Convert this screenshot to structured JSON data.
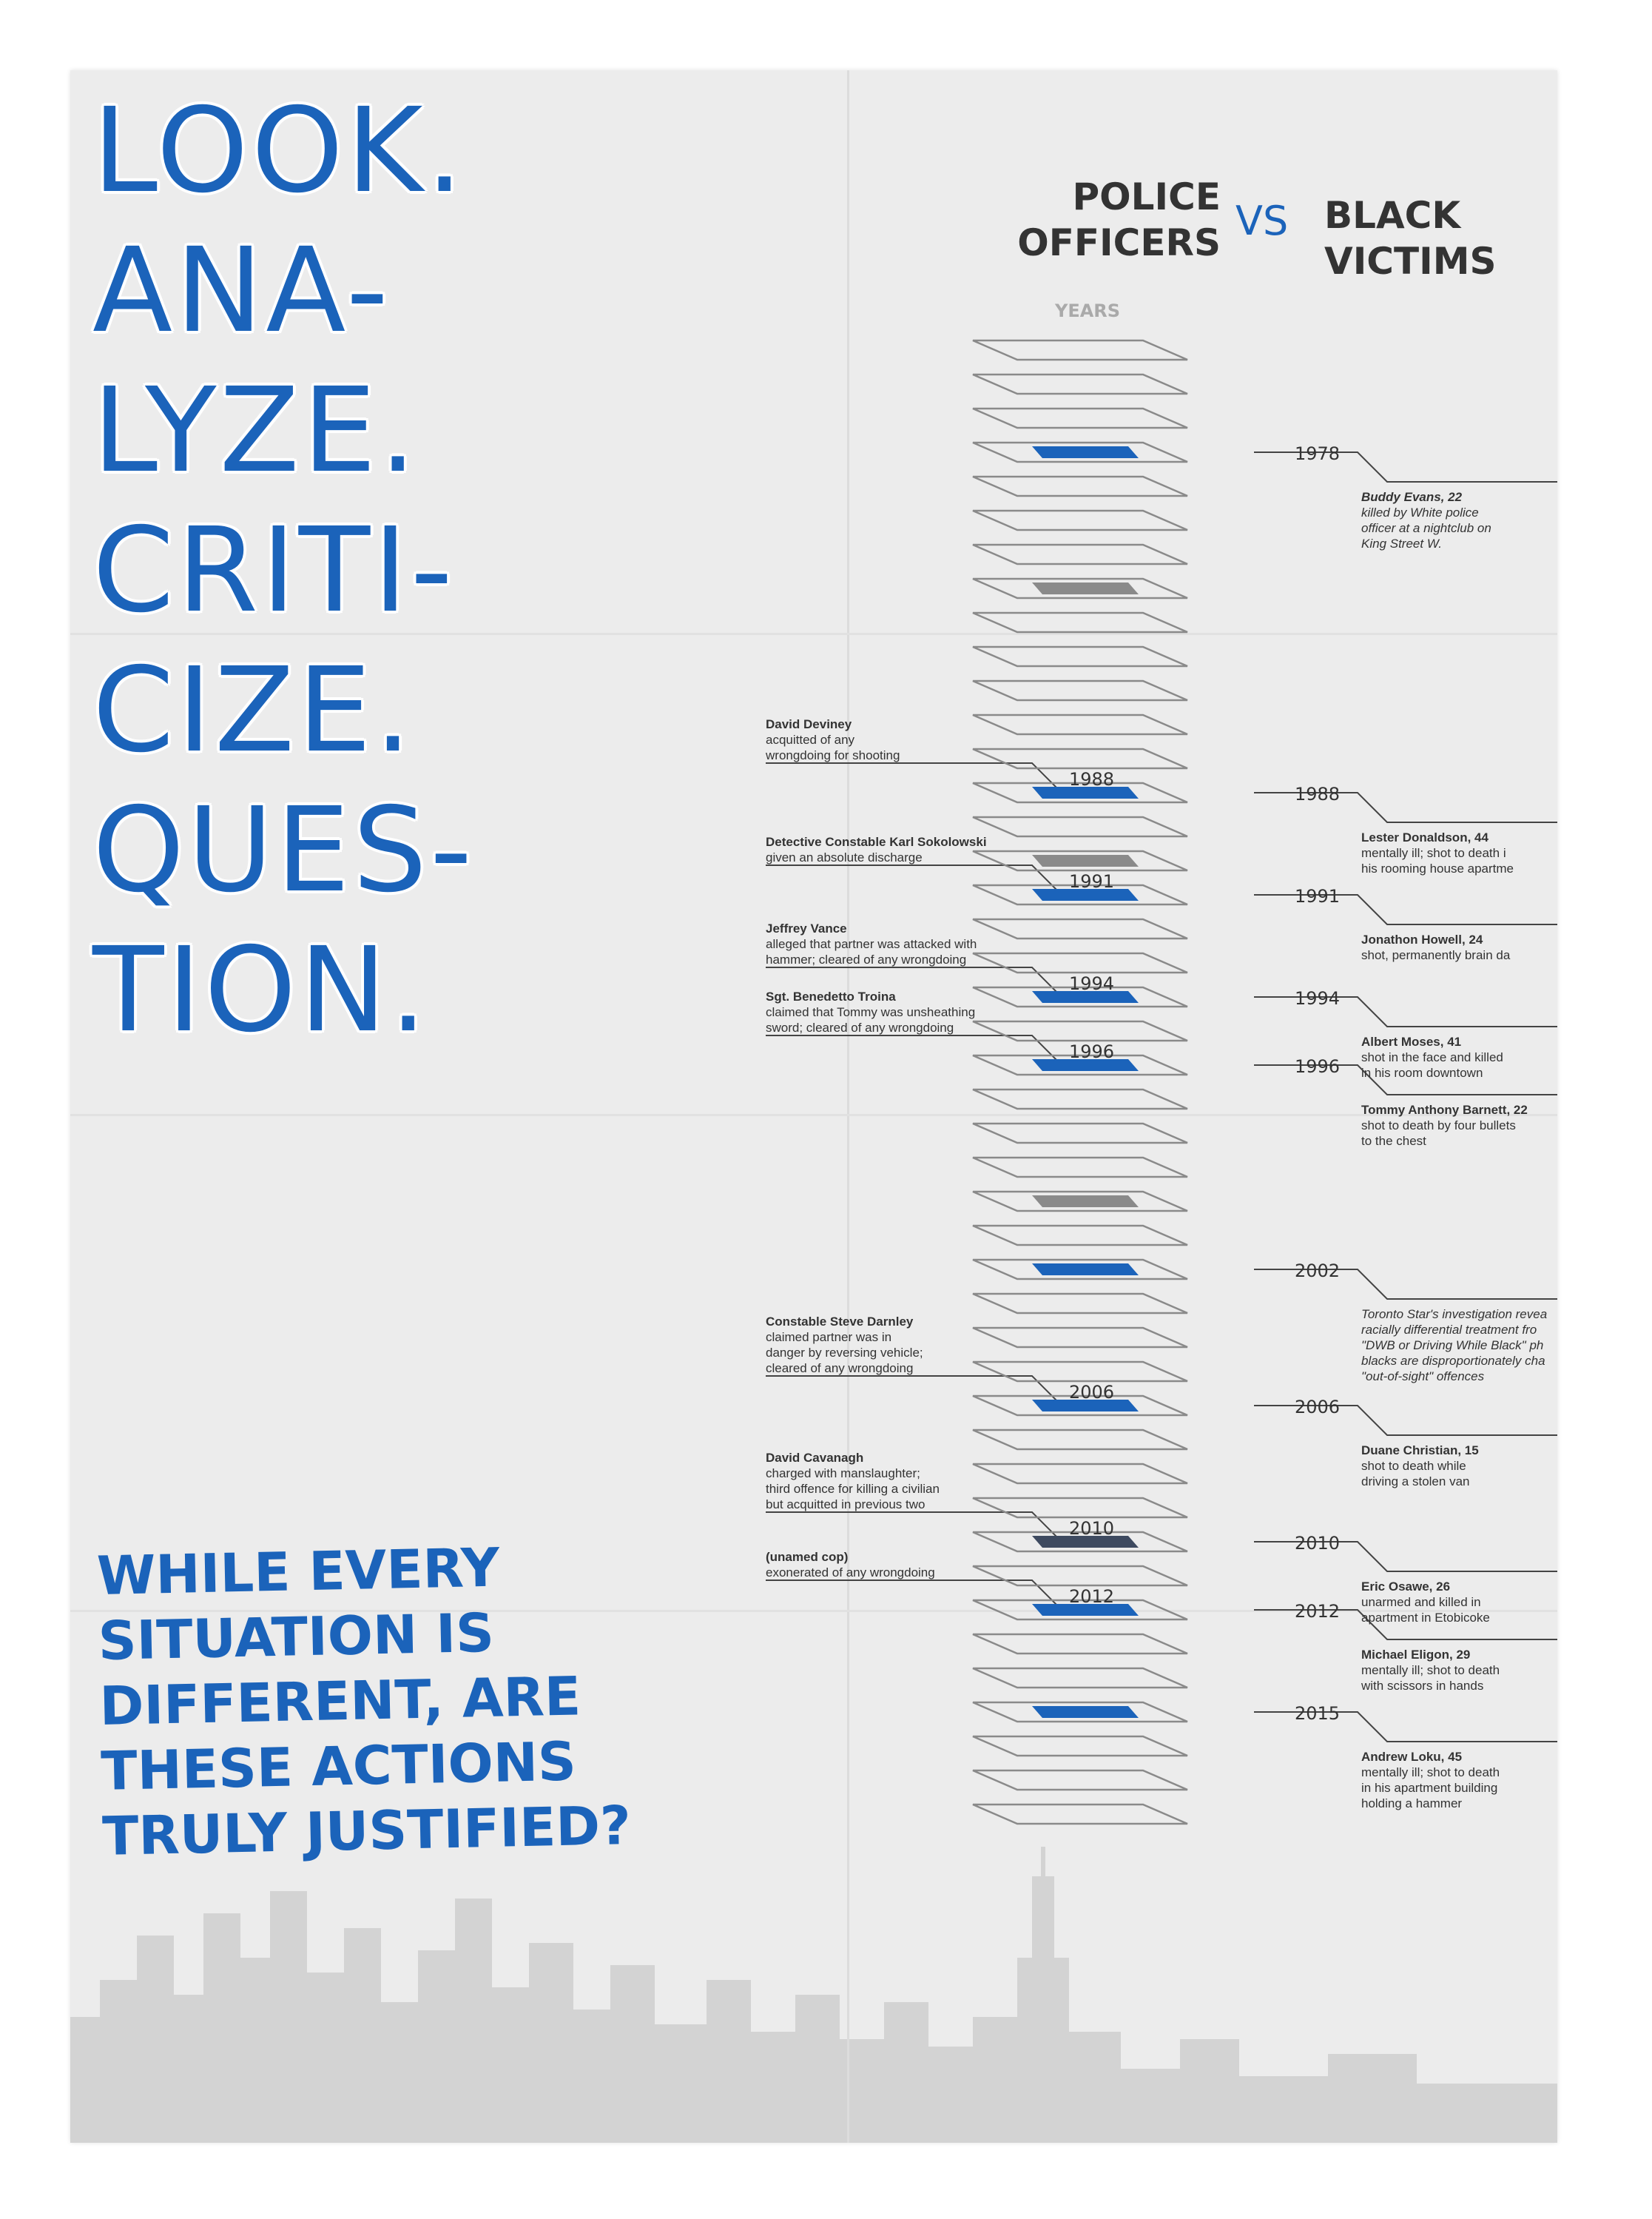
{
  "headline": [
    "LOOK.",
    "ANA-",
    "LYZE.",
    "CRITI-",
    "CIZE.",
    "QUES-",
    "TION."
  ],
  "subhead": [
    "WHILE EVERY",
    "SITUATION IS",
    "DIFFERENT, ARE",
    "THESE ACTIONS",
    "TRULY JUSTIFIED?"
  ],
  "header": {
    "left": [
      "POLICE",
      "OFFICERS"
    ],
    "vs": "VS",
    "right": [
      "BLACK",
      "VICTIMS"
    ],
    "years_label": "YEARS"
  },
  "colors": {
    "accent": "#1b63ba",
    "gray_block": "#8a8a8a",
    "dark_block": "#3e4a60",
    "text": "#333333"
  },
  "timeline": {
    "start_year": 1975,
    "end_year": 2018,
    "blue_years": [
      1978,
      1988,
      1991,
      1994,
      1996,
      2002,
      2006,
      2012,
      2015
    ],
    "gray_years": [
      1982,
      1990,
      2000
    ],
    "dark_years": [
      2010
    ]
  },
  "officers": [
    {
      "year": "1988",
      "name": "David Deviney",
      "desc": [
        "acquitted of any",
        "wrongdoing for shooting"
      ]
    },
    {
      "year": "1991",
      "name": "Detective Constable Karl Sokolowski",
      "desc": [
        "given an absolute discharge"
      ]
    },
    {
      "year": "1994",
      "name": "Jeffrey Vance",
      "desc": [
        "alleged that partner was attacked with",
        "hammer; cleared of any wrongdoing"
      ]
    },
    {
      "year": "1996",
      "name": "Sgt. Benedetto Troina",
      "desc": [
        "claimed that Tommy was unsheathing",
        "sword; cleared of any wrongdoing"
      ]
    },
    {
      "year": "2006",
      "name": "Constable Steve Darnley",
      "desc": [
        "claimed partner was in",
        "danger by reversing vehicle;",
        "cleared of any wrongdoing"
      ]
    },
    {
      "year": "2010",
      "name": "David Cavanagh",
      "desc": [
        "charged with manslaughter;",
        "third offence for killing a civilian",
        "but acquitted in previous two"
      ]
    },
    {
      "year": "2012",
      "name": "(unamed cop)",
      "desc": [
        "exonerated of any wrongdoing"
      ]
    }
  ],
  "victims": [
    {
      "year": "1978",
      "name": "Buddy Evans, 22",
      "desc": [
        "killed by White police",
        "officer at a nightclub on",
        "King Street W."
      ],
      "italic": true
    },
    {
      "year": "1988",
      "name": "Lester Donaldson, 44",
      "desc": [
        "mentally ill; shot to death i",
        "his rooming house apartme"
      ]
    },
    {
      "year": "1991",
      "name": "Jonathon Howell, 24",
      "desc": [
        "shot, permanently brain da"
      ]
    },
    {
      "year": "1994",
      "name": "Albert Moses, 41",
      "desc": [
        "shot in the face and killed",
        "in his room downtown"
      ]
    },
    {
      "year": "1996",
      "name": "Tommy Anthony Barnett, 22",
      "desc": [
        "shot to death by four bullets",
        "to the chest"
      ]
    },
    {
      "year": "2002",
      "name": "",
      "desc": [
        "Toronto Star's investigation revea",
        "racially differential treatment fro",
        "\"DWB or Driving While Black\" ph",
        "blacks are disproportionately cha",
        "\"out-of-sight\" offences"
      ],
      "italic": true
    },
    {
      "year": "2006",
      "name": "Duane Christian, 15",
      "desc": [
        "shot to death while",
        "driving a stolen van"
      ]
    },
    {
      "year": "2010",
      "name": "Eric Osawe, 26",
      "desc": [
        "unarmed and killed in",
        "apartment in Etobicoke"
      ]
    },
    {
      "year": "2012",
      "name": "Michael Eligon, 29",
      "desc": [
        "mentally ill; shot to death",
        "with scissors in hands"
      ]
    },
    {
      "year": "2015",
      "name": "Andrew Loku, 45",
      "desc": [
        "mentally ill; shot to death",
        "in his apartment building",
        "holding a hammer"
      ]
    }
  ]
}
